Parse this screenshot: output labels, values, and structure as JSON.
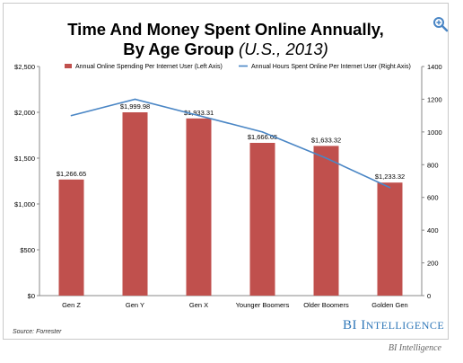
{
  "title": {
    "line1": "Time And Money Spent Online Annually,",
    "line2": "By Age Group",
    "line2_italic": "(U.S., 2013)"
  },
  "icons": {
    "zoom": "zoom-in-icon"
  },
  "source": "Source: Forrester",
  "brand": {
    "first": "BI",
    "rest_initial": "I",
    "rest": "NTELLIGENCE"
  },
  "caption": "BI Intelligence",
  "colors": {
    "bar": "#c0504d",
    "line": "#4a86c5",
    "brand": "#2f77b8"
  },
  "chart_data": {
    "type": "bar",
    "categories": [
      "Gen Z",
      "Gen Y",
      "Gen X",
      "Younger Boomers",
      "Older Boomers",
      "Golden Gen"
    ],
    "series": [
      {
        "name": "Annual Online Spending Per Internet User (Left Axis)",
        "type": "bar",
        "axis": "left",
        "values": [
          1266.65,
          1999.98,
          1933.31,
          1666.65,
          1633.32,
          1233.32
        ],
        "labels": [
          "$1,266.65",
          "$1,999.98",
          "$1,933.31",
          "$1,666.65",
          "$1,633.32",
          "$1,233.32"
        ]
      },
      {
        "name": "Annual Hours Spent Online Per Internet User (Right Axis)",
        "type": "line",
        "axis": "right",
        "values": [
          1100,
          1200,
          1100,
          1000,
          840,
          660
        ]
      }
    ],
    "y_left": {
      "range": [
        0,
        2500
      ],
      "ticks": [
        0,
        500,
        1000,
        1500,
        2000,
        2500
      ],
      "tick_labels": [
        "$0",
        "$500",
        "$1,000",
        "$1,500",
        "$2,000",
        "$2,500"
      ]
    },
    "y_right": {
      "range": [
        0,
        1400
      ],
      "ticks": [
        0,
        200,
        400,
        600,
        800,
        1000,
        1200,
        1400
      ],
      "tick_labels": [
        "0",
        "200",
        "400",
        "600",
        "800",
        "1000",
        "1200",
        "1400"
      ]
    },
    "legend_position": "top",
    "grid": false
  }
}
